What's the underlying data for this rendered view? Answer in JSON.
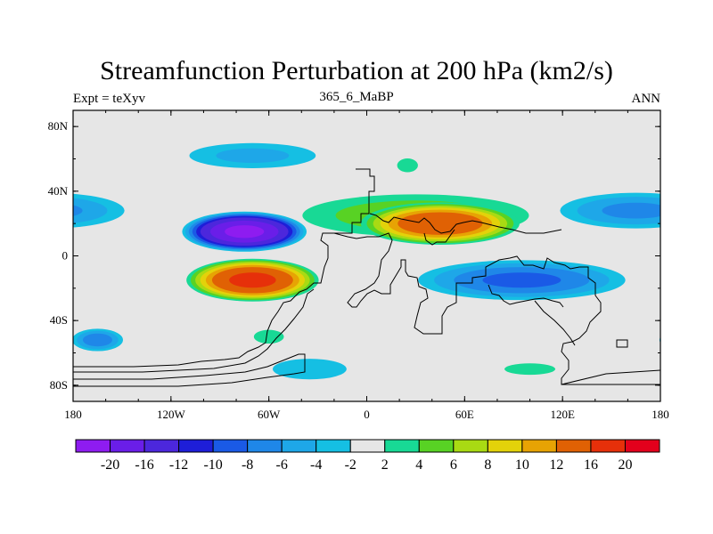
{
  "chart_data": {
    "type": "heatmap",
    "title": "Streamfunction Perturbation at 200 hPa (km2/s)",
    "left_string": "Expt = teXyv",
    "center_string": "365_6_MaBP",
    "right_string": "ANN",
    "projection": "cylindrical equidistant, continents outlined",
    "x_range": [
      -180,
      180
    ],
    "y_range": [
      -90,
      90
    ],
    "x_ticks": [
      {
        "value": -180,
        "label": "180"
      },
      {
        "value": -120,
        "label": "120W"
      },
      {
        "value": -60,
        "label": "60W"
      },
      {
        "value": 0,
        "label": "0"
      },
      {
        "value": 60,
        "label": "60E"
      },
      {
        "value": 120,
        "label": "120E"
      },
      {
        "value": 180,
        "label": "180"
      }
    ],
    "y_ticks": [
      {
        "value": 80,
        "label": "80N"
      },
      {
        "value": 40,
        "label": "40N"
      },
      {
        "value": 0,
        "label": "0"
      },
      {
        "value": -40,
        "label": "40S"
      },
      {
        "value": -80,
        "label": "80S"
      }
    ],
    "background_color": "#e6e6e6",
    "colorbar": {
      "levels": [
        "-20",
        "-16",
        "-12",
        "-10",
        "-8",
        "-6",
        "-4",
        "-2",
        "2",
        "4",
        "6",
        "8",
        "10",
        "12",
        "16",
        "20"
      ],
      "colors": [
        "#8e1cf0",
        "#6a1ee8",
        "#4c27dc",
        "#1e1ed8",
        "#1a5ae6",
        "#1f87e8",
        "#1ea7e8",
        "#15bfe3",
        "#e6e6e6",
        "#18d995",
        "#58d224",
        "#a9da13",
        "#e3d20a",
        "#e7a304",
        "#e06104",
        "#e6300a",
        "#e3001c"
      ]
    },
    "features": [
      {
        "name": "North Atlantic low",
        "lon": -75,
        "lat": 15,
        "lon_radius": 40,
        "lat_radius": 13,
        "peak": -21
      },
      {
        "name": "South Atlantic high",
        "lon": -70,
        "lat": -15,
        "lon_radius": 43,
        "lat_radius": 14,
        "peak": 17
      },
      {
        "name": "Asian high",
        "lon": 45,
        "lat": 20,
        "lon_radius": 52,
        "lat_radius": 14,
        "peak": 15
      },
      {
        "name": "Indian Ocean low",
        "lon": 95,
        "lat": -15,
        "lon_radius": 72,
        "lat_radius": 14,
        "peak": -8
      },
      {
        "name": "North Pacific low",
        "lon": 165,
        "lat": 28,
        "lon_radius": 55,
        "lat_radius": 13,
        "peak": -6
      },
      {
        "name": "Tropical Atlantic ridge",
        "lon": 30,
        "lat": 25,
        "lon_radius": 85,
        "lat_radius": 16,
        "peak": 5
      },
      {
        "name": "Southern Pacific low",
        "lon": -165,
        "lat": -52,
        "lon_radius": 18,
        "lat_radius": 8,
        "peak": -7
      },
      {
        "name": "Arctic low",
        "lon": -70,
        "lat": 62,
        "lon_radius": 50,
        "lat_radius": 10,
        "peak": -4
      },
      {
        "name": "Eurasian high",
        "lon": 25,
        "lat": 56,
        "lon_radius": 9,
        "lat_radius": 6,
        "peak": 3
      },
      {
        "name": "Antarctic low",
        "lon": -35,
        "lat": -70,
        "lon_radius": 32,
        "lat_radius": 9,
        "peak": -3
      },
      {
        "name": "Southern Ocean high",
        "lon": 100,
        "lat": -70,
        "lon_radius": 22,
        "lat_radius": 5,
        "peak": 3
      },
      {
        "name": "Southern Atlantic high",
        "lon": -60,
        "lat": -50,
        "lon_radius": 13,
        "lat_radius": 6,
        "peak": 3
      }
    ]
  }
}
